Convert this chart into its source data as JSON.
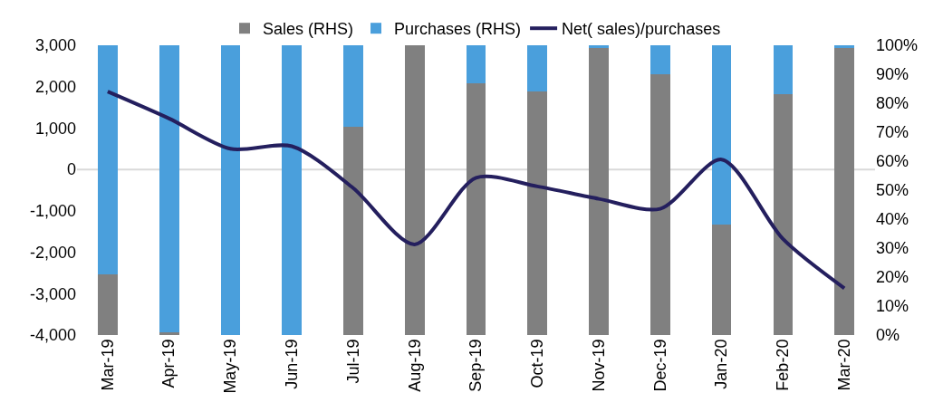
{
  "chart_data": {
    "type": "bar",
    "stacked": true,
    "categories": [
      "Mar-19",
      "Apr-19",
      "May-19",
      "Jun-19",
      "Jul-19",
      "Aug-19",
      "Sep-19",
      "Oct-19",
      "Nov-19",
      "Dec-19",
      "Jan-20",
      "Feb-20",
      "Mar-20"
    ],
    "series": [
      {
        "name": "Sales (RHS)",
        "axis": "y2",
        "color": "#808080",
        "values": [
          21,
          1,
          0,
          0,
          72,
          100,
          87,
          84,
          99,
          90,
          38,
          83,
          99
        ]
      },
      {
        "name": "Purchases (RHS)",
        "axis": "y2",
        "color": "#4a9fdc",
        "values": [
          79,
          99,
          100,
          100,
          28,
          0,
          13,
          16,
          1,
          10,
          62,
          17,
          1
        ]
      },
      {
        "name": "Net( sales)/purchases",
        "type": "line",
        "axis": "y",
        "color": "#241f5e",
        "line_style": "solid",
        "values": [
          1880,
          1230,
          500,
          560,
          -450,
          -1810,
          -200,
          -410,
          -710,
          -950,
          240,
          -1680,
          -2870
        ]
      }
    ],
    "ylim": [
      -4000,
      3000
    ],
    "yticks": [
      {
        "value": -4000,
        "label": "-4,000"
      },
      {
        "value": -3000,
        "label": "-3,000"
      },
      {
        "value": -2000,
        "label": "-2,000"
      },
      {
        "value": -1000,
        "label": "-1,000"
      },
      0,
      {
        "value": 1000,
        "label": "1,000"
      },
      {
        "value": 2000,
        "label": "2,000"
      },
      {
        "value": 3000,
        "label": "3,000"
      }
    ],
    "y2lim": [
      0,
      100
    ],
    "y2ticks": [
      {
        "value": 0,
        "label": "0%"
      },
      {
        "value": 10,
        "label": "10%"
      },
      {
        "value": 20,
        "label": "20%"
      },
      {
        "value": 30,
        "label": "30%"
      },
      {
        "value": 40,
        "label": "40%"
      },
      {
        "value": 50,
        "label": "50%"
      },
      {
        "value": 60,
        "label": "60%"
      },
      {
        "value": 70,
        "label": "70%"
      },
      {
        "value": 80,
        "label": "80%"
      },
      {
        "value": 90,
        "label": "90%"
      },
      {
        "value": 100,
        "label": "100%"
      }
    ],
    "ref_lines": [
      {
        "axis": "y",
        "value": 0,
        "color": "#d9d9d9"
      }
    ],
    "grid": false,
    "legend": "top",
    "marker": "none"
  }
}
